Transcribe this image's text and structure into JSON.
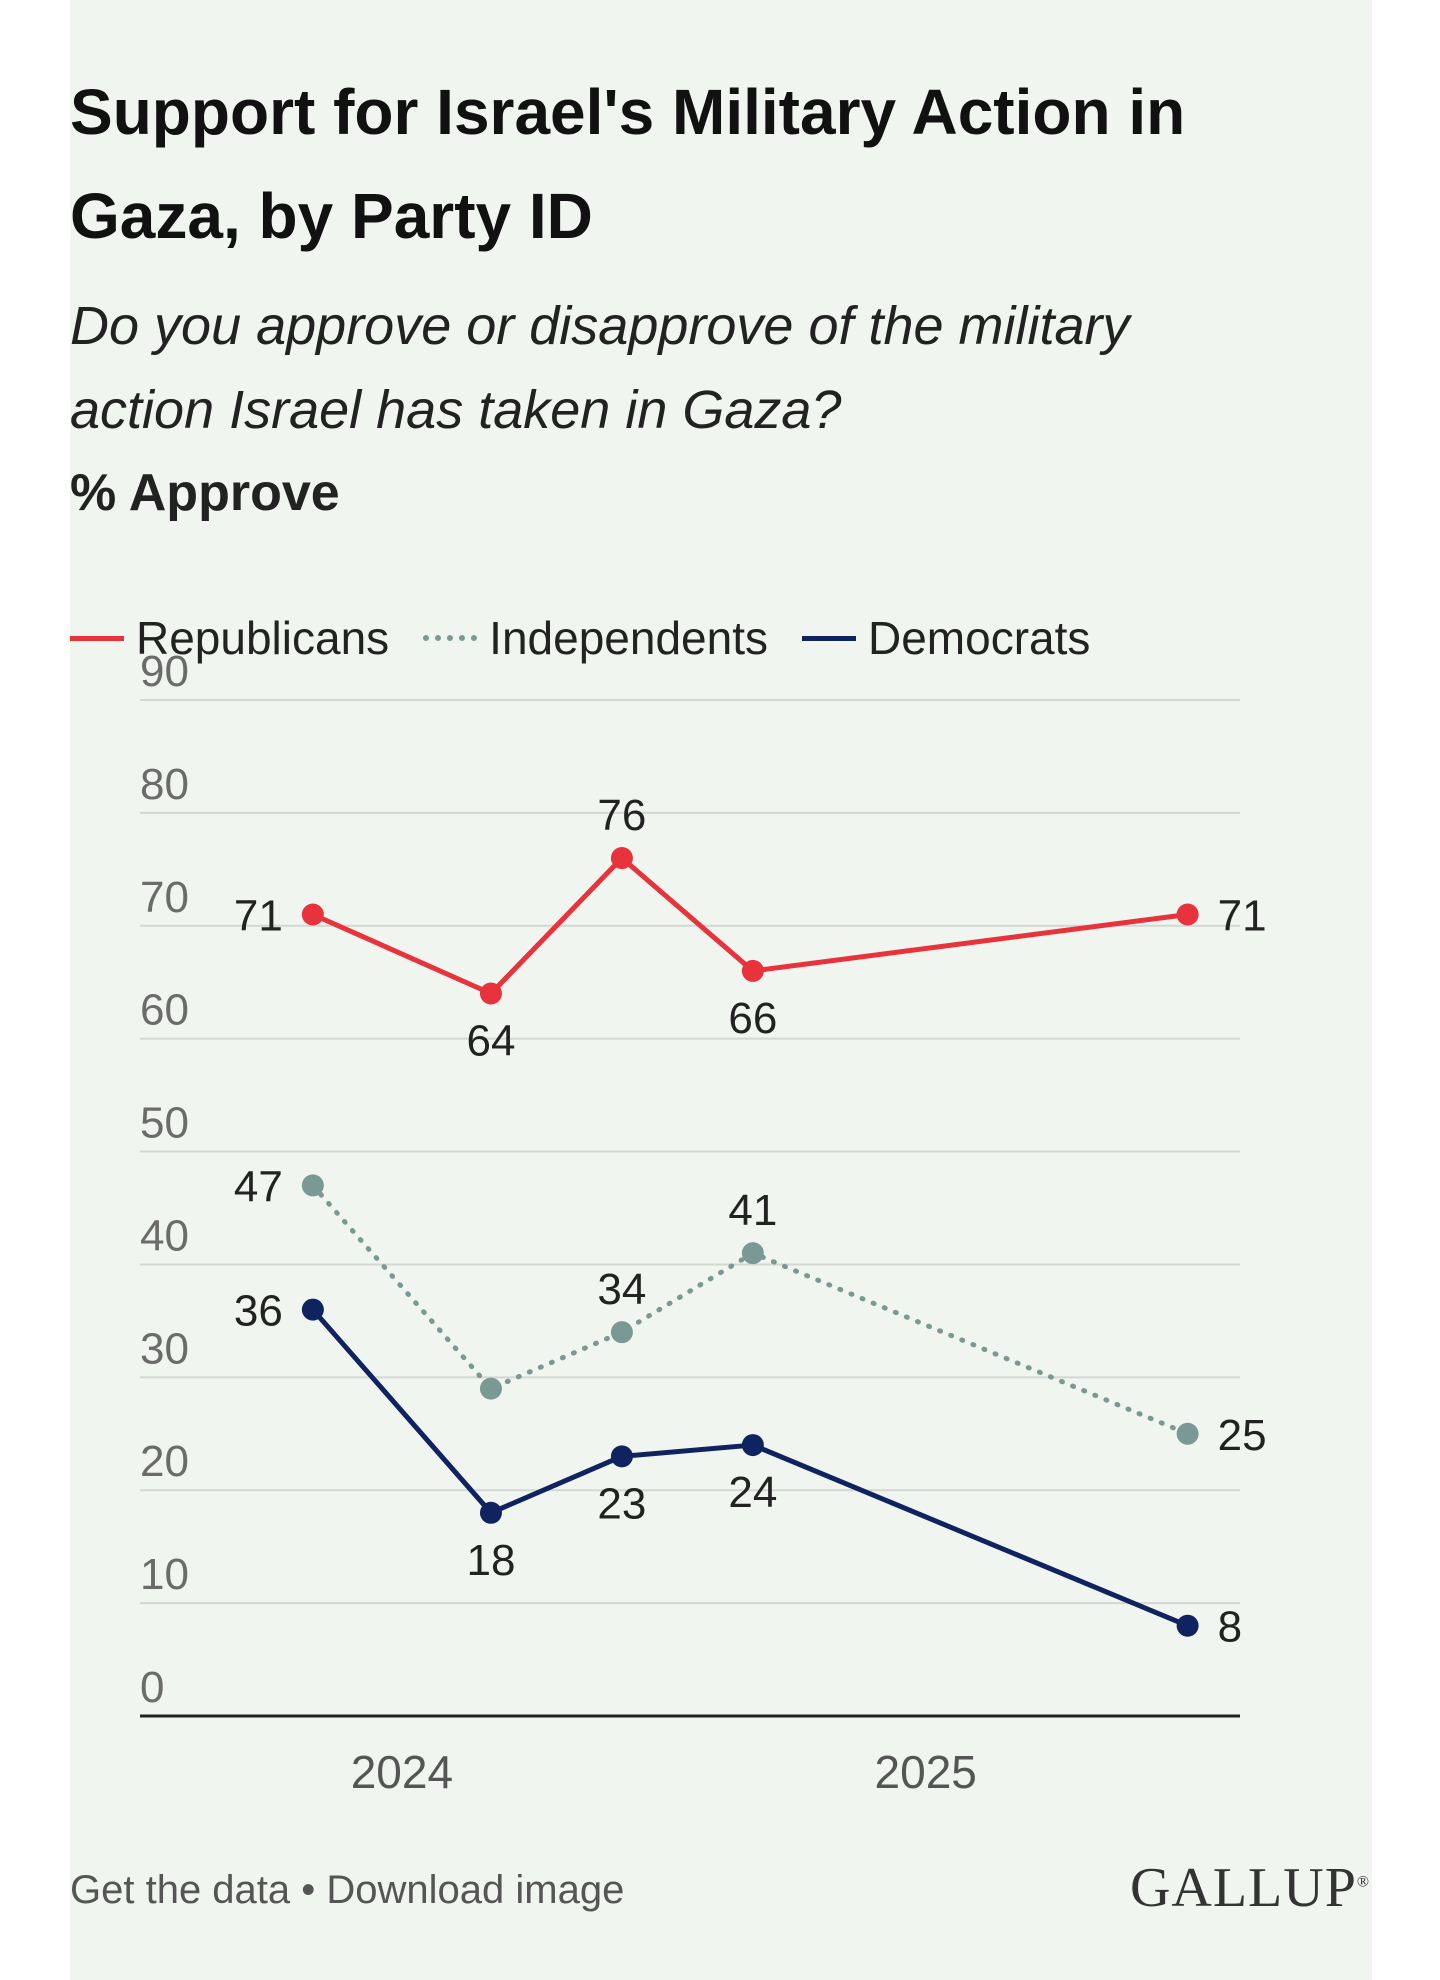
{
  "chart_data": {
    "type": "line",
    "title": "Support for Israel's Military Action in Gaza, by Party ID",
    "subtitle": "Do you approve or disapprove of the military action Israel has taken in Gaza?",
    "ylabel": "% Approve",
    "xlabel": "",
    "ylim": [
      0,
      90
    ],
    "yticks": [
      "0",
      "10",
      "20",
      "30",
      "40",
      "50",
      "60",
      "70",
      "80",
      "90"
    ],
    "xticks": [
      {
        "label": "2024",
        "x": 2024.0
      },
      {
        "label": "2025",
        "x": 2025.0
      }
    ],
    "xlim": [
      2023.5,
      2025.6
    ],
    "x": [
      2023.83,
      2024.17,
      2024.42,
      2024.67,
      2025.5
    ],
    "grid": true,
    "legend": "top-left",
    "series": [
      {
        "name": "Republicans",
        "color": "#e8323c",
        "style": "solid",
        "values": [
          71,
          64,
          76,
          66,
          71
        ]
      },
      {
        "name": "Independents",
        "color": "#7a9994",
        "style": "dotted",
        "values": [
          47,
          29,
          34,
          41,
          25
        ]
      },
      {
        "name": "Democrats",
        "color": "#0f2360",
        "style": "solid",
        "values": [
          36,
          18,
          23,
          24,
          8
        ]
      }
    ],
    "data_labels": [
      {
        "series": 0,
        "point": 0,
        "text": "71",
        "pos": "left"
      },
      {
        "series": 0,
        "point": 1,
        "text": "64",
        "pos": "below"
      },
      {
        "series": 0,
        "point": 2,
        "text": "76",
        "pos": "above"
      },
      {
        "series": 0,
        "point": 3,
        "text": "66",
        "pos": "below"
      },
      {
        "series": 0,
        "point": 4,
        "text": "71",
        "pos": "right"
      },
      {
        "series": 1,
        "point": 0,
        "text": "47",
        "pos": "left"
      },
      {
        "series": 1,
        "point": 2,
        "text": "34",
        "pos": "above"
      },
      {
        "series": 1,
        "point": 3,
        "text": "41",
        "pos": "above"
      },
      {
        "series": 1,
        "point": 4,
        "text": "25",
        "pos": "right"
      },
      {
        "series": 2,
        "point": 0,
        "text": "36",
        "pos": "left"
      },
      {
        "series": 2,
        "point": 1,
        "text": "18",
        "pos": "below"
      },
      {
        "series": 2,
        "point": 2,
        "text": "23",
        "pos": "below"
      },
      {
        "series": 2,
        "point": 3,
        "text": "24",
        "pos": "below"
      },
      {
        "series": 2,
        "point": 4,
        "text": "8",
        "pos": "right"
      }
    ]
  },
  "footer": {
    "get_data": "Get the data",
    "separator": " • ",
    "download": "Download image",
    "logo": "GALLUP",
    "logo_mark": "®"
  }
}
